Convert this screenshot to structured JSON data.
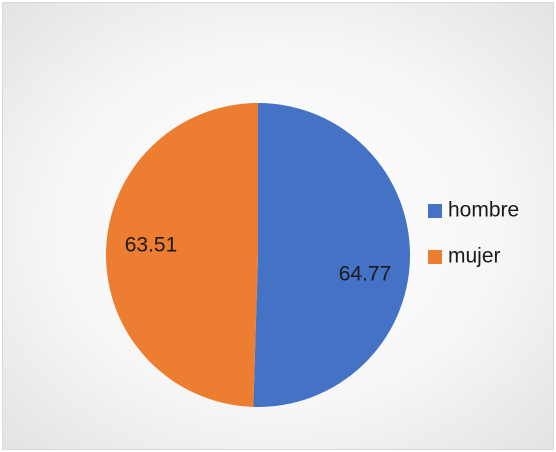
{
  "chart_data": {
    "type": "pie",
    "title": "",
    "categories": [
      "hombre",
      "mujer"
    ],
    "values": [
      64.77,
      63.51
    ],
    "value_labels": [
      "64.77",
      "63.51"
    ],
    "colors": [
      "#4472C4",
      "#ED7D31"
    ],
    "start_angle_deg": 0,
    "direction": "clockwise",
    "legend_position": "right"
  }
}
